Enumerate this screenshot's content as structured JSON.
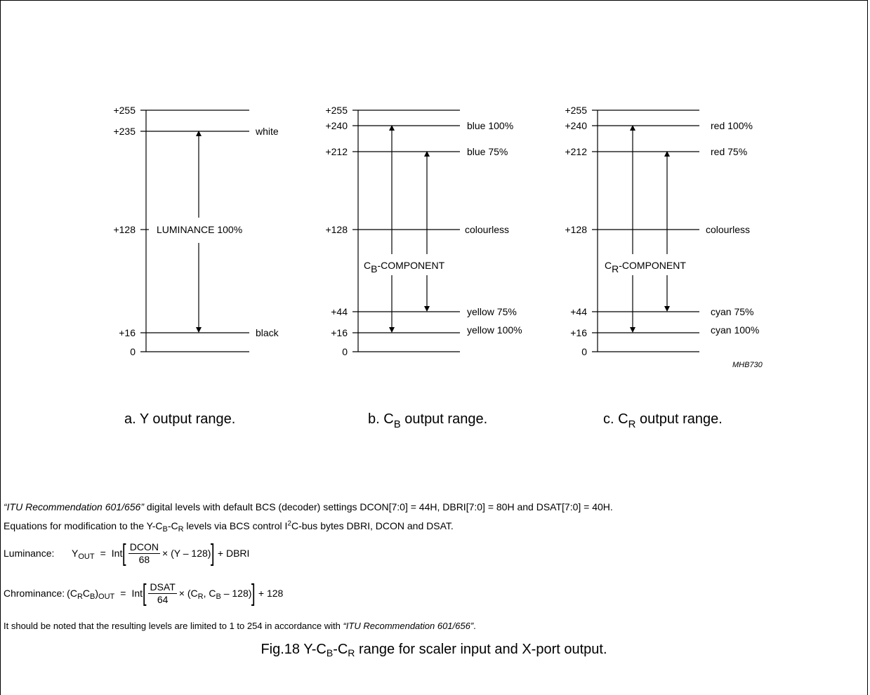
{
  "diagrams": [
    {
      "id": "y",
      "level_labels": [
        "+255",
        "+235",
        "+128",
        "+16",
        "0"
      ],
      "right_labels": [
        "white",
        "black"
      ],
      "arrow_label": "LUMINANCE 100%",
      "caption_prefix": "a.  Y output range."
    },
    {
      "id": "cb",
      "level_labels": [
        "+255",
        "+240",
        "+212",
        "+128",
        "+44",
        "+16",
        "0"
      ],
      "right_labels": [
        "blue 100%",
        "blue 75%",
        "colourless",
        "yellow 75%",
        "yellow 100%"
      ],
      "arrow_label_main": "C",
      "arrow_label_sub": "B",
      "arrow_label_rest": "-COMPONENT",
      "caption_main": "b.  C",
      "caption_sub": "B",
      "caption_rest": " output range."
    },
    {
      "id": "cr",
      "level_labels": [
        "+255",
        "+240",
        "+212",
        "+128",
        "+44",
        "+16",
        "0"
      ],
      "right_labels": [
        "red 100%",
        "red 75%",
        "colourless",
        "cyan 75%",
        "cyan 100%"
      ],
      "arrow_label_main": "C",
      "arrow_label_sub": "R",
      "arrow_label_rest": "-COMPONENT",
      "caption_main": "c.  C",
      "caption_sub": "R",
      "caption_rest": " output range.",
      "ref_code": "MHB730"
    }
  ],
  "notes": {
    "line1_italic": "“ITU Recommendation 601/656”",
    "line1_rest": " digital levels with default BCS (decoder) settings DCON[7:0] = 44H, DBRI[7:0] = 80H and DSAT[7:0] = 40H.",
    "line2_a": "Equations for modification to the Y-C",
    "line2_sub1": "B",
    "line2_b": "-C",
    "line2_sub2": "R",
    "line2_c": " levels via BCS control I",
    "line2_sup": "2",
    "line2_d": "C-bus bytes DBRI, DCON and DSAT.",
    "lum_label": "Luminance:",
    "lum_lhs": "Y",
    "lum_lhs_sub": "OUT",
    "eq_equals": "=",
    "eq_int": "Int",
    "lum_num": "DCON",
    "lum_den": "68",
    "lum_factor": "× (Y – 128)",
    "lum_tail": "+ DBRI",
    "chr_label": "Chrominance:",
    "chr_lhs_a": "(C",
    "chr_lhs_sub1": "R",
    "chr_lhs_b": "C",
    "chr_lhs_sub2": "B",
    "chr_lhs_c": ")",
    "chr_lhs_sub3": "OUT",
    "chr_num": "DSAT",
    "chr_den": "64",
    "chr_factor_a": "× (C",
    "chr_factor_sub1": "R",
    "chr_factor_b": ", C",
    "chr_factor_sub2": "B",
    "chr_factor_c": " – 128)",
    "chr_tail": "+ 128",
    "line5_a": "It should be noted that the resulting levels are limited to 1 to 254 in accordance with ",
    "line5_italic": "“ITU Recommendation 601/656”",
    "line5_b": "."
  },
  "figure_caption": {
    "a": "Fig.18  Y-C",
    "sub1": "B",
    "b": "-C",
    "sub2": "R",
    "c": " range for scaler input and X-port output."
  }
}
